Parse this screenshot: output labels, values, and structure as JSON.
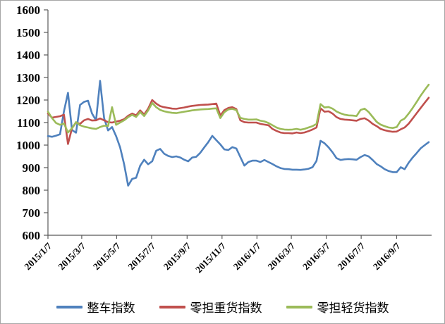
{
  "chart": {
    "background": "#ffffff",
    "border_color": "#a6a6a6",
    "axis_color": "#595959",
    "text_color": "#000000"
  },
  "chart_data": {
    "type": "line",
    "title": "",
    "xlabel": "",
    "ylabel": "",
    "grid": false,
    "legend_position": "bottom",
    "ylim": [
      600,
      1600
    ],
    "yticks": [
      600,
      700,
      800,
      900,
      1000,
      1100,
      1200,
      1300,
      1400,
      1500,
      1600
    ],
    "xtick_labels": [
      "2015/1/7",
      "2015/3/7",
      "2015/5/7",
      "2015/7/7",
      "2015/9/7",
      "2015/11/7",
      "2016/1/7",
      "2016/3/7",
      "2016/5/7",
      "2016/7/7",
      "2016/9/7"
    ],
    "x_axis_start": "2015/1/7",
    "x_axis_end": "2016/11/7",
    "x": [
      "2015/1/7",
      "2015/1/14",
      "2015/1/21",
      "2015/1/28",
      "2015/2/4",
      "2015/2/11",
      "2015/2/18",
      "2015/2/25",
      "2015/3/4",
      "2015/3/11",
      "2015/3/18",
      "2015/3/25",
      "2015/4/1",
      "2015/4/8",
      "2015/4/15",
      "2015/4/22",
      "2015/4/29",
      "2015/5/6",
      "2015/5/13",
      "2015/5/20",
      "2015/5/27",
      "2015/6/3",
      "2015/6/10",
      "2015/6/17",
      "2015/6/24",
      "2015/7/1",
      "2015/7/8",
      "2015/7/15",
      "2015/7/22",
      "2015/7/29",
      "2015/8/5",
      "2015/8/12",
      "2015/8/19",
      "2015/8/26",
      "2015/9/2",
      "2015/9/9",
      "2015/9/16",
      "2015/9/23",
      "2015/9/30",
      "2015/10/7",
      "2015/10/14",
      "2015/10/21",
      "2015/10/28",
      "2015/11/4",
      "2015/11/11",
      "2015/11/18",
      "2015/11/25",
      "2015/12/2",
      "2015/12/9",
      "2015/12/16",
      "2015/12/23",
      "2015/12/30",
      "2016/1/6",
      "2016/1/13",
      "2016/1/20",
      "2016/1/27",
      "2016/2/3",
      "2016/2/10",
      "2016/2/17",
      "2016/2/24",
      "2016/3/2",
      "2016/3/9",
      "2016/3/16",
      "2016/3/23",
      "2016/3/30",
      "2016/4/6",
      "2016/4/13",
      "2016/4/20",
      "2016/4/27",
      "2016/5/4",
      "2016/5/11",
      "2016/5/18",
      "2016/5/25",
      "2016/6/1",
      "2016/6/8",
      "2016/6/15",
      "2016/6/22",
      "2016/6/29",
      "2016/7/6",
      "2016/7/13",
      "2016/7/20",
      "2016/7/27",
      "2016/8/3",
      "2016/8/10",
      "2016/8/17",
      "2016/8/24",
      "2016/8/31",
      "2016/9/7",
      "2016/9/14",
      "2016/9/21",
      "2016/9/28",
      "2016/10/5",
      "2016/10/12",
      "2016/10/19",
      "2016/10/26",
      "2016/11/2"
    ],
    "series": [
      {
        "name": "整车指数",
        "color": "#4F81BD",
        "values": [
          1040,
          1037,
          1042,
          1048,
          1150,
          1232,
          1067,
          1055,
          1178,
          1192,
          1197,
          1140,
          1110,
          1285,
          1120,
          1065,
          1080,
          1040,
          990,
          915,
          820,
          850,
          855,
          908,
          935,
          915,
          928,
          975,
          983,
          962,
          952,
          947,
          950,
          945,
          935,
          928,
          945,
          948,
          966,
          990,
          1013,
          1041,
          1022,
          1003,
          981,
          978,
          991,
          985,
          947,
          909,
          925,
          931,
          931,
          925,
          934,
          925,
          916,
          906,
          898,
          894,
          893,
          891,
          891,
          890,
          892,
          895,
          902,
          930,
          1019,
          1008,
          990,
          968,
          942,
          934,
          937,
          938,
          937,
          935,
          947,
          956,
          950,
          934,
          916,
          906,
          893,
          885,
          880,
          880,
          902,
          893,
          922,
          945,
          965,
          986,
          1000,
          1013
        ]
      },
      {
        "name": "零担重货指数",
        "color": "#C0504D",
        "values": [
          1140,
          1122,
          1125,
          1128,
          1135,
          1005,
          1075,
          1100,
          1094,
          1110,
          1116,
          1109,
          1110,
          1118,
          1110,
          1102,
          1100,
          1104,
          1108,
          1115,
          1130,
          1140,
          1132,
          1154,
          1136,
          1162,
          1200,
          1184,
          1173,
          1168,
          1165,
          1162,
          1161,
          1164,
          1167,
          1171,
          1174,
          1176,
          1178,
          1179,
          1180,
          1182,
          1184,
          1131,
          1155,
          1165,
          1168,
          1160,
          1110,
          1102,
          1100,
          1100,
          1100,
          1094,
          1091,
          1088,
          1072,
          1063,
          1056,
          1053,
          1053,
          1052,
          1056,
          1053,
          1056,
          1062,
          1069,
          1078,
          1163,
          1148,
          1150,
          1140,
          1124,
          1116,
          1113,
          1112,
          1110,
          1108,
          1116,
          1119,
          1109,
          1094,
          1084,
          1072,
          1066,
          1062,
          1059,
          1060,
          1070,
          1078,
          1095,
          1118,
          1142,
          1165,
          1188,
          1210
        ]
      },
      {
        "name": "零担轻货指数",
        "color": "#9BBB59",
        "values": [
          1148,
          1120,
          1098,
          1090,
          1096,
          1056,
          1075,
          1102,
          1088,
          1082,
          1078,
          1074,
          1072,
          1080,
          1086,
          1085,
          1168,
          1090,
          1100,
          1110,
          1124,
          1134,
          1125,
          1147,
          1129,
          1154,
          1187,
          1168,
          1156,
          1150,
          1146,
          1143,
          1142,
          1145,
          1148,
          1151,
          1154,
          1156,
          1158,
          1159,
          1160,
          1162,
          1163,
          1120,
          1146,
          1158,
          1161,
          1155,
          1121,
          1116,
          1113,
          1113,
          1114,
          1108,
          1105,
          1098,
          1088,
          1078,
          1072,
          1069,
          1068,
          1069,
          1072,
          1068,
          1072,
          1078,
          1084,
          1094,
          1182,
          1167,
          1169,
          1162,
          1149,
          1141,
          1135,
          1132,
          1131,
          1129,
          1156,
          1162,
          1147,
          1125,
          1103,
          1091,
          1084,
          1078,
          1076,
          1080,
          1108,
          1118,
          1140,
          1165,
          1192,
          1220,
          1245,
          1268
        ]
      }
    ]
  },
  "legend": {
    "items": [
      {
        "label": "整车指数"
      },
      {
        "label": "零担重货指数"
      },
      {
        "label": "零担轻货指数"
      }
    ]
  }
}
